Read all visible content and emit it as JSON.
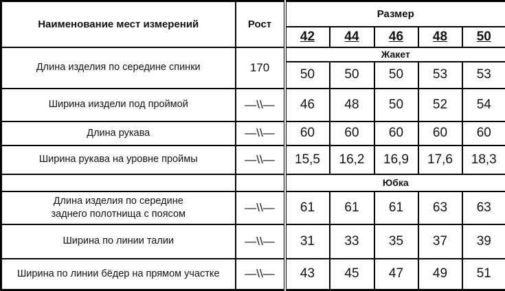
{
  "header": {
    "name_col": "Наименование мест измерений",
    "height_col": "Рост",
    "size_group": "Размер",
    "sizes": [
      "42",
      "44",
      "46",
      "48",
      "50"
    ]
  },
  "sections": [
    {
      "title": "Жакет",
      "rows": [
        {
          "name": "Длина изделия по середине спинки",
          "height": "170",
          "values": [
            "50",
            "50",
            "50",
            "53",
            "53"
          ]
        },
        {
          "name": "Ширина ииздели под проймой",
          "height": "—\\\\—",
          "values": [
            "46",
            "48",
            "50",
            "52",
            "54"
          ]
        },
        {
          "name": "Длина рукава",
          "height": "—\\\\—",
          "values": [
            "60",
            "60",
            "60",
            "60",
            "60"
          ]
        },
        {
          "name": "Ширина рукава на уровне проймы",
          "height": "—\\\\—",
          "values": [
            "15,5",
            "16,2",
            "16,9",
            "17,6",
            "18,3"
          ]
        }
      ]
    },
    {
      "title": "Юбка",
      "rows": [
        {
          "name": "Длина изделия по середине заднего полотнища с поясом",
          "height": "—\\\\—",
          "values": [
            "61",
            "61",
            "61",
            "63",
            "63"
          ]
        },
        {
          "name": "Ширина по линии талии",
          "height": "—\\\\—",
          "values": [
            "31",
            "33",
            "35",
            "37",
            "39"
          ]
        },
        {
          "name": "Ширина по линии бёдер на прямом участке",
          "height": "—\\\\—",
          "values": [
            "43",
            "45",
            "47",
            "49",
            "51"
          ]
        }
      ]
    }
  ]
}
